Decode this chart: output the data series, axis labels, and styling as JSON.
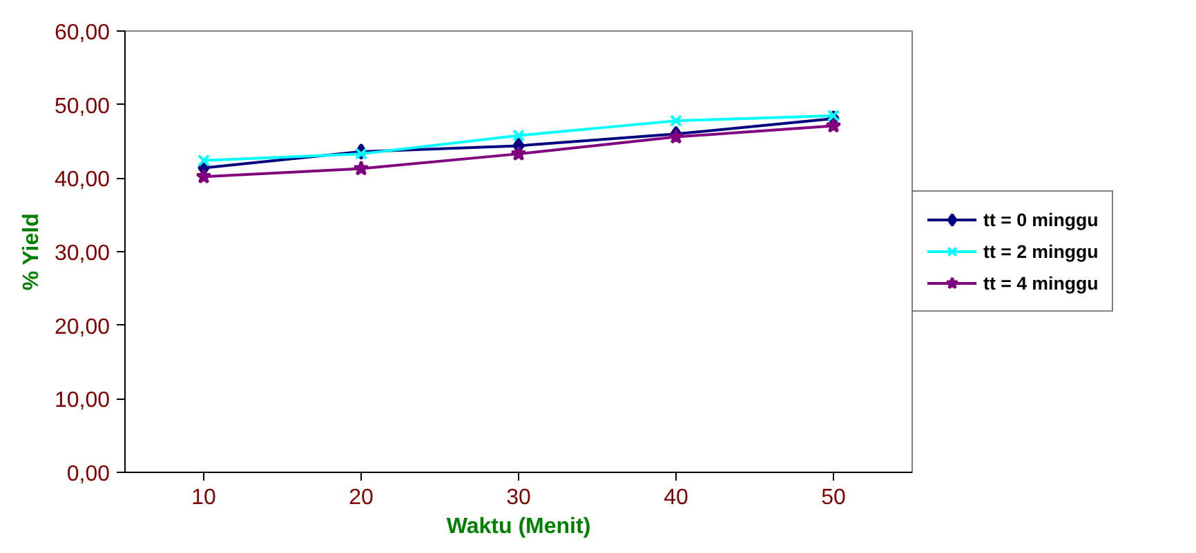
{
  "chart_data": {
    "type": "line",
    "xlabel": "Waktu (Menit)",
    "ylabel": "% Yield",
    "categories": [
      "10",
      "20",
      "30",
      "40",
      "50"
    ],
    "series": [
      {
        "name": "tt = 0 minggu",
        "color": "#000080",
        "marker": "diamond",
        "values": [
          41.4,
          43.6,
          44.4,
          46.0,
          48.1
        ]
      },
      {
        "name": "tt = 2 minggu",
        "color": "#00ffff",
        "marker": "cross",
        "values": [
          42.4,
          43.3,
          45.8,
          47.8,
          48.5
        ]
      },
      {
        "name": "tt = 4 minggu",
        "color": "#800080",
        "marker": "star",
        "values": [
          40.2,
          41.3,
          43.3,
          45.6,
          47.1
        ]
      }
    ],
    "ylim": [
      0,
      60
    ],
    "yticks": [
      {
        "value": 0,
        "label": "0,00"
      },
      {
        "value": 10,
        "label": "10,00"
      },
      {
        "value": 20,
        "label": "20,00"
      },
      {
        "value": 30,
        "label": "30,00"
      },
      {
        "value": 40,
        "label": "40,00"
      },
      {
        "value": 50,
        "label": "50,00"
      },
      {
        "value": 60,
        "label": "60,00"
      }
    ],
    "grid": false,
    "legend": "right",
    "line_style": "solid"
  }
}
